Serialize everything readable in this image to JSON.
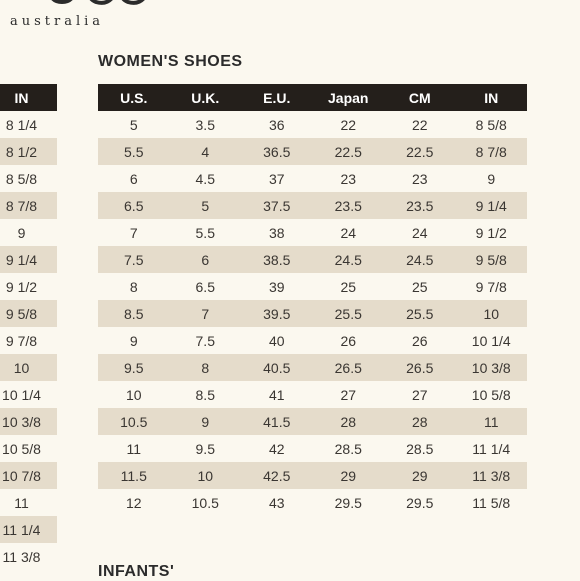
{
  "brand": {
    "subtitle": "australia"
  },
  "womens": {
    "title": "WOMEN'S SHOES",
    "columns": [
      "U.S.",
      "U.K.",
      "E.U.",
      "Japan",
      "CM",
      "IN"
    ],
    "rows": [
      [
        "5",
        "3.5",
        "36",
        "22",
        "22",
        "8 5/8"
      ],
      [
        "5.5",
        "4",
        "36.5",
        "22.5",
        "22.5",
        "8 7/8"
      ],
      [
        "6",
        "4.5",
        "37",
        "23",
        "23",
        "9"
      ],
      [
        "6.5",
        "5",
        "37.5",
        "23.5",
        "23.5",
        "9 1/4"
      ],
      [
        "7",
        "5.5",
        "38",
        "24",
        "24",
        "9 1/2"
      ],
      [
        "7.5",
        "6",
        "38.5",
        "24.5",
        "24.5",
        "9 5/8"
      ],
      [
        "8",
        "6.5",
        "39",
        "25",
        "25",
        "9 7/8"
      ],
      [
        "8.5",
        "7",
        "39.5",
        "25.5",
        "25.5",
        "10"
      ],
      [
        "9",
        "7.5",
        "40",
        "26",
        "26",
        "10 1/4"
      ],
      [
        "9.5",
        "8",
        "40.5",
        "26.5",
        "26.5",
        "10 3/8"
      ],
      [
        "10",
        "8.5",
        "41",
        "27",
        "27",
        "10 5/8"
      ],
      [
        "10.5",
        "9",
        "41.5",
        "28",
        "28",
        "11"
      ],
      [
        "11",
        "9.5",
        "42",
        "28.5",
        "28.5",
        "11 1/4"
      ],
      [
        "11.5",
        "10",
        "42.5",
        "29",
        "29",
        "11 3/8"
      ],
      [
        "12",
        "10.5",
        "43",
        "29.5",
        "29.5",
        "11 5/8"
      ]
    ]
  },
  "mens_partial": {
    "column": "IN",
    "rows": [
      "8 1/4",
      "8 1/2",
      "8 5/8",
      "8 7/8",
      "9",
      "9 1/4",
      "9 1/2",
      "9 5/8",
      "9 7/8",
      "10",
      "10 1/4",
      "10 3/8",
      "10 5/8",
      "10 7/8",
      "11",
      "11 1/4",
      "11 3/8"
    ]
  },
  "infants": {
    "title": "INFANTS'"
  }
}
